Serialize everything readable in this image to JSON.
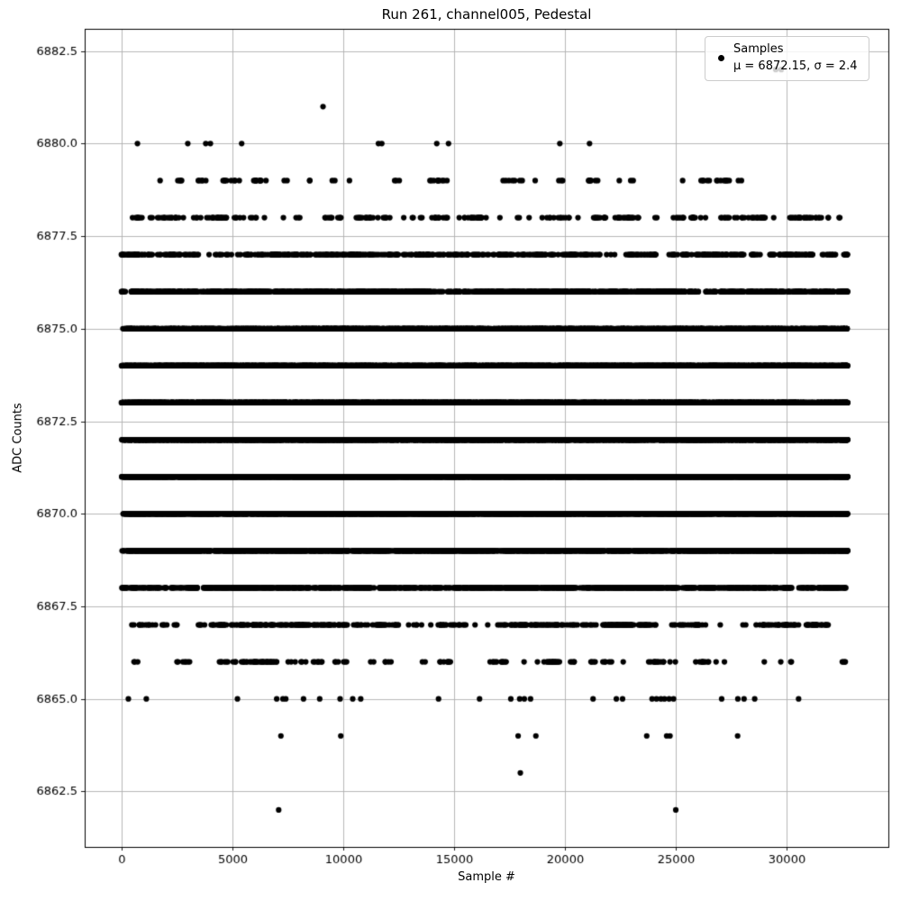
{
  "figure": {
    "title": "Run 261, channel005, Pedestal",
    "xlabel": "Sample #",
    "ylabel": "ADC Counts"
  },
  "legend": {
    "marker_icon": "point-marker",
    "marker_color": "#000000",
    "lines": [
      "Samples",
      "μ = 6872.15, σ = 2.4"
    ]
  },
  "colors": {
    "background": "#ffffff",
    "marker": "#000000",
    "grid": "#b0b0b0",
    "spine": "#000000",
    "legend_border": "#cccccc"
  },
  "chart_data": {
    "type": "scatter",
    "title": "Run 261, channel005, Pedestal",
    "xlabel": "Sample #",
    "ylabel": "ADC Counts",
    "grid": true,
    "legend_position": "upper right",
    "marker_color": "#000000",
    "stats": {
      "mu": 6872.15,
      "sigma": 2.4
    },
    "xlim": [
      -1650,
      34600
    ],
    "ylim": [
      6861.0,
      6883.1
    ],
    "xtick_values": [
      0,
      5000,
      10000,
      15000,
      20000,
      25000,
      30000
    ],
    "xtick_labels": [
      "0",
      "5000",
      "10000",
      "15000",
      "20000",
      "25000",
      "30000"
    ],
    "ytick_values": [
      6862.5,
      6865.0,
      6867.5,
      6870.0,
      6872.5,
      6875.0,
      6877.5,
      6880.0,
      6882.5
    ],
    "ytick_labels": [
      "6862.5",
      "6865.0",
      "6867.5",
      "6870.0",
      "6872.5",
      "6875.0",
      "6877.5",
      "6880.0",
      "6882.5"
    ],
    "sample_range": [
      0,
      32767
    ],
    "levels": [
      {
        "adc": 6882,
        "samples": [
          29520,
          29770
        ]
      },
      {
        "adc": 6881,
        "samples": [
          9100
        ]
      },
      {
        "adc": 6880,
        "samples": [
          730,
          3000,
          3810,
          4020,
          5430,
          11600,
          11750,
          14230,
          14760,
          19780,
          21120
        ]
      },
      {
        "adc": 6879,
        "count": 85
      },
      {
        "adc": 6878,
        "count": 270
      },
      {
        "adc": 6877,
        "count": 650
      },
      {
        "adc": 6876,
        "count": 1450
      },
      {
        "adc": 6875,
        "count": 2700
      },
      {
        "adc": 6874,
        "count": 4000
      },
      {
        "adc": 6873,
        "count": 5000
      },
      {
        "adc": 6872,
        "count": 5400
      },
      {
        "adc": 6871,
        "count": 4800
      },
      {
        "adc": 6870,
        "count": 3600
      },
      {
        "adc": 6869,
        "count": 2300
      },
      {
        "adc": 6868,
        "count": 1150
      },
      {
        "adc": 6867,
        "count": 480
      },
      {
        "adc": 6866,
        "count": 170
      },
      {
        "adc": 6865,
        "samples": [
          320,
          1130,
          5240,
          7010,
          7290,
          7420,
          8220,
          8950,
          9870,
          10440,
          10800,
          14310,
          16160,
          17570,
          17970,
          18180,
          18460,
          21280,
          22330,
          22610,
          23940,
          24140,
          24340,
          24500,
          24710,
          24910,
          27080,
          27810,
          28090,
          28570,
          30550
        ]
      },
      {
        "adc": 6864,
        "samples": [
          7200,
          9900,
          17900,
          18700,
          23700,
          24600,
          24750,
          27800
        ]
      },
      {
        "adc": 6863,
        "samples": [
          18000
        ]
      },
      {
        "adc": 6862,
        "samples": [
          7100,
          25010
        ]
      }
    ]
  }
}
